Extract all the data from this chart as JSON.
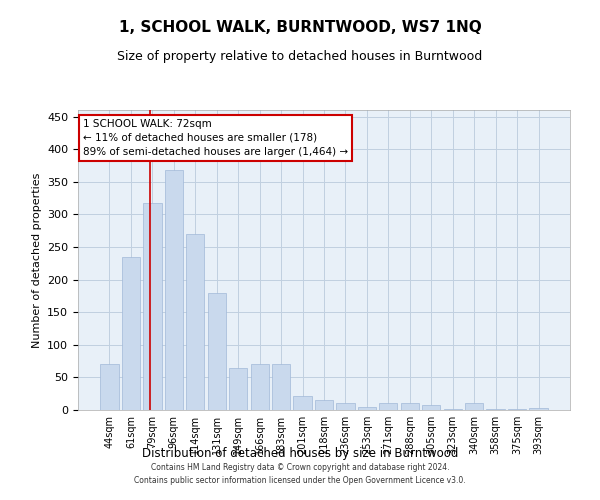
{
  "title": "1, SCHOOL WALK, BURNTWOOD, WS7 1NQ",
  "subtitle": "Size of property relative to detached houses in Burntwood",
  "xlabel": "Distribution of detached houses by size in Burntwood",
  "ylabel": "Number of detached properties",
  "categories": [
    "44sqm",
    "61sqm",
    "79sqm",
    "96sqm",
    "114sqm",
    "131sqm",
    "149sqm",
    "166sqm",
    "183sqm",
    "201sqm",
    "218sqm",
    "236sqm",
    "253sqm",
    "271sqm",
    "288sqm",
    "305sqm",
    "323sqm",
    "340sqm",
    "358sqm",
    "375sqm",
    "393sqm"
  ],
  "values": [
    70,
    235,
    318,
    368,
    270,
    180,
    65,
    70,
    70,
    22,
    15,
    10,
    5,
    10,
    10,
    8,
    2,
    10,
    2,
    2,
    3
  ],
  "bar_color": "#c9d9ed",
  "bar_edgecolor": "#a0b8d8",
  "property_line_x": 1.9,
  "annotation_text": "1 SCHOOL WALK: 72sqm\n← 11% of detached houses are smaller (178)\n89% of semi-detached houses are larger (1,464) →",
  "annotation_box_facecolor": "#ffffff",
  "annotation_box_edgecolor": "#cc0000",
  "vline_color": "#cc0000",
  "grid_color": "#c0cfe0",
  "plot_background": "#e8f0f8",
  "footer": "Contains HM Land Registry data © Crown copyright and database right 2024.\nContains public sector information licensed under the Open Government Licence v3.0.",
  "ylim": [
    0,
    460
  ],
  "yticks": [
    0,
    50,
    100,
    150,
    200,
    250,
    300,
    350,
    400,
    450
  ]
}
